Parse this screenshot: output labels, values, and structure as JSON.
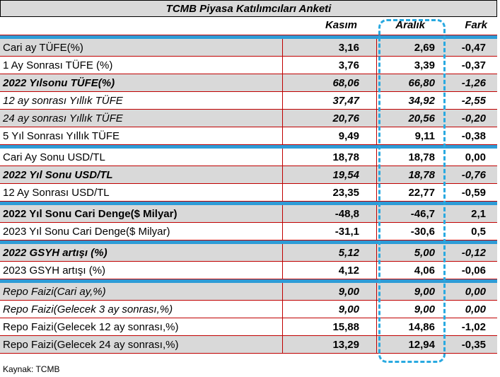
{
  "title": "TCMB Piyasa Katılımcıları Anketi",
  "headers": {
    "label": "",
    "col1": "Kasım",
    "col2": "Aralık",
    "col3": "Fark"
  },
  "groups": [
    {
      "rows": [
        {
          "label": "Cari ay TÜFE(%)",
          "v1": "3,16",
          "v2": "2,69",
          "v3": "-0,47",
          "bold": false,
          "italic": false,
          "gray": true
        },
        {
          "label": "1 Ay Sonrası TÜFE (%)",
          "v1": "3,76",
          "v2": "3,39",
          "v3": "-0,37",
          "bold": false,
          "italic": false,
          "gray": false
        },
        {
          "label": "2022 Yılsonu TÜFE(%)",
          "v1": "68,06",
          "v2": "66,80",
          "v3": "-1,26",
          "bold": true,
          "italic": true,
          "gray": true
        },
        {
          "label": "12 ay sonrası Yıllık TÜFE",
          "v1": "37,47",
          "v2": "34,92",
          "v3": "-2,55",
          "bold": false,
          "italic": true,
          "gray": false
        },
        {
          "label": "24 ay sonrası Yıllık TÜFE",
          "v1": "20,76",
          "v2": "20,56",
          "v3": "-0,20",
          "bold": false,
          "italic": true,
          "gray": true
        },
        {
          "label": "5 Yıl Sonrası Yıllık TÜFE",
          "v1": "9,49",
          "v2": "9,11",
          "v3": "-0,38",
          "bold": false,
          "italic": false,
          "gray": false
        }
      ]
    },
    {
      "rows": [
        {
          "label": "Cari Ay Sonu USD/TL",
          "v1": "18,78",
          "v2": "18,78",
          "v3": "0,00",
          "bold": false,
          "italic": false,
          "gray": false
        },
        {
          "label": "2022 Yıl Sonu USD/TL",
          "v1": "19,54",
          "v2": "18,78",
          "v3": "-0,76",
          "bold": true,
          "italic": true,
          "gray": true
        },
        {
          "label": "12 Ay Sonrası USD/TL",
          "v1": "23,35",
          "v2": "22,77",
          "v3": "-0,59",
          "bold": false,
          "italic": false,
          "gray": false
        }
      ]
    },
    {
      "rows": [
        {
          "label": "2022 Yıl Sonu Cari Denge($ Milyar)",
          "v1": "-48,8",
          "v2": "-46,7",
          "v3": "2,1",
          "bold": true,
          "italic": false,
          "gray": true
        },
        {
          "label": "2023 Yıl Sonu Cari Denge($ Milyar)",
          "v1": "-31,1",
          "v2": "-30,6",
          "v3": "0,5",
          "bold": false,
          "italic": false,
          "gray": false
        }
      ]
    },
    {
      "rows": [
        {
          "label": "2022 GSYH artışı (%)",
          "v1": "5,12",
          "v2": "5,00",
          "v3": "-0,12",
          "bold": true,
          "italic": true,
          "gray": true
        },
        {
          "label": "2023 GSYH artışı (%)",
          "v1": "4,12",
          "v2": "4,06",
          "v3": "-0,06",
          "bold": false,
          "italic": false,
          "gray": false
        }
      ]
    },
    {
      "rows": [
        {
          "label": "Repo Faizi(Cari ay,%)",
          "v1": "9,00",
          "v2": "9,00",
          "v3": "0,00",
          "bold": false,
          "italic": true,
          "gray": true
        },
        {
          "label": "Repo Faizi(Gelecek 3 ay sonrası,%)",
          "v1": "9,00",
          "v2": "9,00",
          "v3": "0,00",
          "bold": false,
          "italic": true,
          "gray": false
        },
        {
          "label": "Repo Faizi(Gelecek 12 ay sonrası,%)",
          "v1": "15,88",
          "v2": "14,86",
          "v3": "-1,02",
          "bold": false,
          "italic": false,
          "gray": false
        },
        {
          "label": "Repo Faizi(Gelecek 24 ay sonrası,%)",
          "v1": "13,29",
          "v2": "12,94",
          "v3": "-0,35",
          "bold": false,
          "italic": false,
          "gray": true
        }
      ]
    }
  ],
  "source": "Kaynak: TCMB",
  "colors": {
    "separator": "#2e9bd6",
    "row_gray": "#d9d9d9",
    "grid": "#c00000",
    "highlight": "#29a9e0"
  }
}
